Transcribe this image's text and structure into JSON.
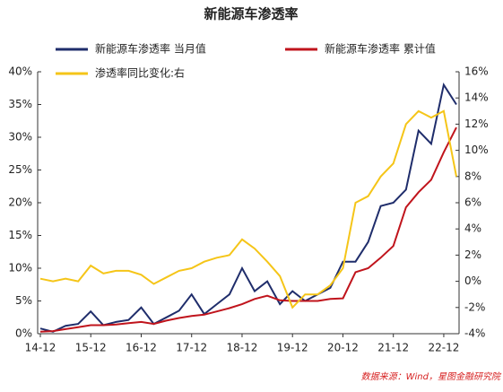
{
  "chart_data": {
    "type": "line",
    "title": "新能源车渗透率",
    "categories": [
      "14-12",
      null,
      null,
      null,
      "15-12",
      null,
      null,
      null,
      "16-12",
      null,
      null,
      null,
      "17-12",
      null,
      null,
      null,
      "18-12",
      null,
      null,
      null,
      "19-12",
      null,
      null,
      null,
      "20-12",
      null,
      null,
      null,
      "21-12",
      null,
      null,
      null,
      "22-12",
      null
    ],
    "series": [
      {
        "name": "新能源车渗透率 当月值",
        "color": "#1f2d6b",
        "values": [
          0.8,
          0.3,
          1.2,
          1.5,
          3.4,
          1.3,
          1.8,
          2.1,
          4,
          1.5,
          2.5,
          3.5,
          6,
          3,
          4.5,
          6,
          10,
          6.5,
          8,
          4.5,
          6.5,
          5,
          6,
          7,
          11,
          11,
          14,
          19.5,
          20,
          22,
          31,
          29,
          38,
          35
        ]
      },
      {
        "name": "新能源车渗透率 累计值",
        "color": "#c0141c",
        "values": [
          0.3,
          0.4,
          0.7,
          1,
          1.3,
          1.3,
          1.4,
          1.6,
          1.8,
          1.5,
          2,
          2.4,
          2.7,
          2.9,
          3.4,
          3.9,
          4.5,
          5.3,
          5.8,
          5.1,
          5,
          5,
          5,
          5.3,
          5.4,
          9.4,
          10,
          11.6,
          13.4,
          19.3,
          21.6,
          23.5,
          27.7,
          31.5
        ]
      },
      {
        "name": "渗透率同比变化:右",
        "color": "#f5c518",
        "axis": "y2",
        "values": [
          0.2,
          0,
          0.2,
          0,
          1.2,
          0.6,
          0.8,
          0.8,
          0.5,
          -0.2,
          0.3,
          0.8,
          1,
          1.5,
          1.8,
          2,
          3.2,
          2.5,
          1.5,
          0.4,
          -2,
          -1,
          -1,
          -0.3,
          1,
          6,
          6.5,
          8,
          9,
          12,
          13,
          12.5,
          13,
          8
        ]
      }
    ],
    "ylim": [
      0,
      40
    ],
    "yticks": [
      {
        "value": 0,
        "label": "0%"
      },
      {
        "value": 5,
        "label": "5%"
      },
      {
        "value": 10,
        "label": "10%"
      },
      {
        "value": 15,
        "label": "15%"
      },
      {
        "value": 20,
        "label": "20%"
      },
      {
        "value": 25,
        "label": "25%"
      },
      {
        "value": 30,
        "label": "30%"
      },
      {
        "value": 35,
        "label": "35%"
      },
      {
        "value": 40,
        "label": "40%"
      }
    ],
    "y2lim": [
      -4,
      16
    ],
    "y2ticks": [
      {
        "value": -4,
        "label": "-4%"
      },
      {
        "value": -2,
        "label": "-2%"
      },
      {
        "value": 0,
        "label": "0%"
      },
      {
        "value": 2,
        "label": "2%"
      },
      {
        "value": 4,
        "label": "4%"
      },
      {
        "value": 6,
        "label": "6%"
      },
      {
        "value": 8,
        "label": "8%"
      },
      {
        "value": 10,
        "label": "10%"
      },
      {
        "value": 12,
        "label": "12%"
      },
      {
        "value": 14,
        "label": "14%"
      },
      {
        "value": 16,
        "label": "16%"
      }
    ],
    "grid": false,
    "source": "数据来源：Wind，星图金融研究院"
  }
}
